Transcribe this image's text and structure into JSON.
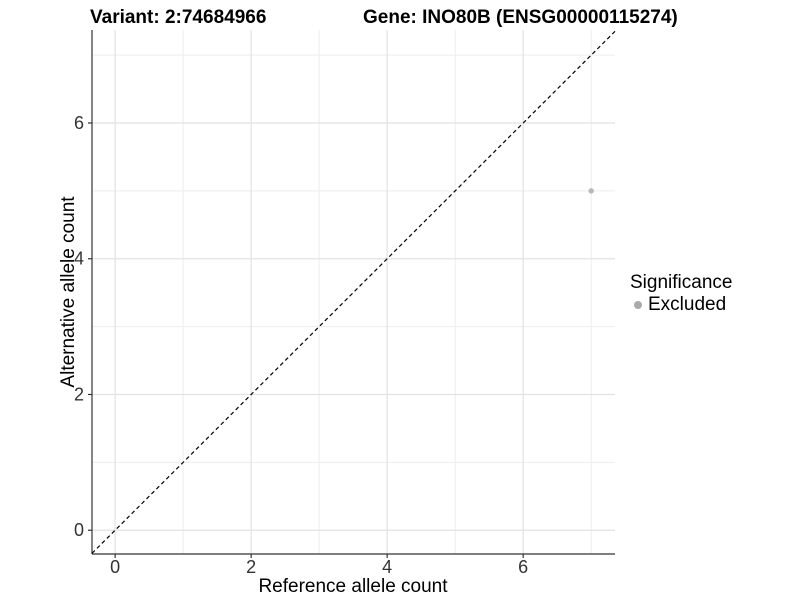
{
  "chart_data": {
    "type": "scatter",
    "title_left": "Variant: 2:74684966",
    "title_right": "Gene: INO80B (ENSG00000115274)",
    "xlabel": "Reference allele count",
    "ylabel": "Alternative allele count",
    "xlim": [
      -0.34,
      7.35
    ],
    "ylim": [
      -0.35,
      7.37
    ],
    "x_major_ticks": [
      0,
      2,
      4,
      6
    ],
    "x_minor_ticks": [
      1,
      3,
      5,
      7
    ],
    "y_major_ticks": [
      0,
      2,
      4,
      6
    ],
    "y_minor_ticks": [
      1,
      3,
      5,
      7
    ],
    "grid": "major+minor on white panel",
    "reference_line": {
      "type": "identity y=x",
      "style": "dashed",
      "color": "#000000"
    },
    "series": [
      {
        "name": "Excluded",
        "color": "#b8b8b8",
        "point_radius": 2.7,
        "points": [
          {
            "x": 7,
            "y": 5
          }
        ]
      }
    ],
    "legend": {
      "title": "Significance",
      "position": "right-middle",
      "entries": [
        {
          "label": "Excluded",
          "color": "#aaaaaa",
          "marker": "dot"
        }
      ]
    },
    "colors": {
      "axis_line": "#333333",
      "tick_text": "#333333",
      "grid_major": "#e2e2e2",
      "grid_minor": "#ededed",
      "background": "#ffffff"
    }
  }
}
